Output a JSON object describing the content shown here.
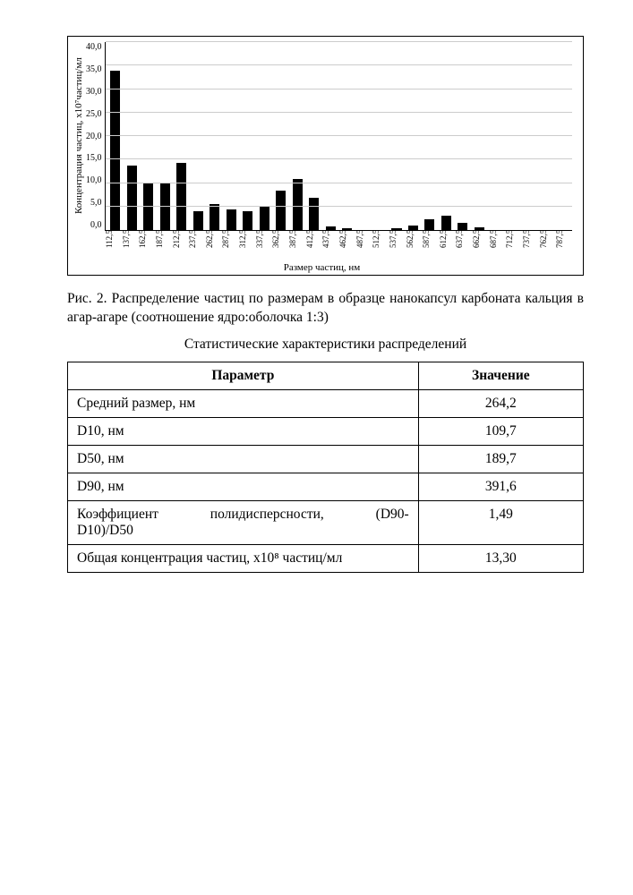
{
  "chart": {
    "type": "bar",
    "y_label": "Концентрация частиц, x10⁷частиц/мл",
    "x_label": "Размер частиц, нм",
    "ylim": [
      0,
      40
    ],
    "ytick_step": 5,
    "y_ticks": [
      "40,0",
      "35,0",
      "30,0",
      "25,0",
      "20,0",
      "15,0",
      "10,0",
      "5,0",
      "0,0"
    ],
    "categories": [
      "112,5",
      "137,5",
      "162,5",
      "187,5",
      "212,5",
      "237,5",
      "262,5",
      "287,5",
      "312,5",
      "337,5",
      "362,5",
      "387,5",
      "412,5",
      "437,5",
      "462,5",
      "487,5",
      "512,5",
      "537,5",
      "562,5",
      "587,5",
      "612,5",
      "637,5",
      "662,5",
      "687,5",
      "712,5",
      "737,5",
      "762,5",
      "787,5"
    ],
    "values": [
      34.0,
      13.8,
      10.0,
      9.9,
      14.3,
      4.0,
      5.5,
      4.3,
      4.0,
      5.0,
      8.3,
      10.8,
      6.8,
      0.8,
      0.3,
      0.0,
      0.0,
      0.3,
      1.0,
      2.3,
      3.0,
      1.5,
      0.5,
      0.0,
      0.0,
      0.0,
      0.0,
      0.0
    ],
    "bar_color": "#000000",
    "grid_color": "#cccccc",
    "axis_color": "#000000",
    "background_color": "#ffffff",
    "label_fontsize": 11,
    "tick_fontsize": 10
  },
  "caption": "Рис. 2. Распределение частиц по размерам в образце нанокапсул карбоната кальция в агар-агаре (соотношение ядро:оболочка 1:3)",
  "table_title": "Статистические характеристики распределений",
  "table": {
    "headers": [
      "Параметр",
      "Значение"
    ],
    "rows": [
      {
        "param": "Средний размер, нм",
        "value": "264,2"
      },
      {
        "param": "D10, нм",
        "value": "109,7"
      },
      {
        "param": "D50, нм",
        "value": "189,7"
      },
      {
        "param": "D90, нм",
        "value": "391,6"
      },
      {
        "param_left": "Коэффициент",
        "param_mid": "полидисперсности,",
        "param_right": "(D90-",
        "param_line2": "D10)/D50",
        "value": "1,49"
      },
      {
        "param": "Общая концентрация частиц, x10⁸ частиц/мл",
        "value": "13,30"
      }
    ]
  }
}
